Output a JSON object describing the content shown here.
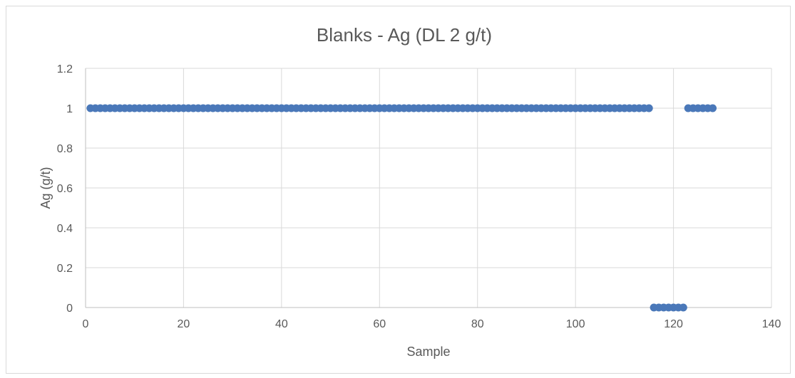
{
  "chart_data": {
    "type": "scatter",
    "title": "Blanks - Ag (DL 2 g/t)",
    "xlabel": "Sample",
    "ylabel": "Ag (g/t)",
    "xlim": [
      0,
      140
    ],
    "ylim": [
      0,
      1.2
    ],
    "xticks": [
      0,
      20,
      40,
      60,
      80,
      100,
      120,
      140
    ],
    "yticks": [
      0,
      0.2,
      0.4,
      0.6,
      0.8,
      1,
      1.2
    ],
    "xtick_labels": [
      "0",
      "20",
      "40",
      "60",
      "80",
      "100",
      "120",
      "140"
    ],
    "ytick_labels": [
      "0",
      "0.2",
      "0.4",
      "0.6",
      "0.8",
      "1",
      "1.2"
    ],
    "grid": true,
    "legend": false,
    "series": [
      {
        "color": "#4a78b9",
        "points": [
          [
            1,
            1
          ],
          [
            2,
            1
          ],
          [
            3,
            1
          ],
          [
            4,
            1
          ],
          [
            5,
            1
          ],
          [
            6,
            1
          ],
          [
            7,
            1
          ],
          [
            8,
            1
          ],
          [
            9,
            1
          ],
          [
            10,
            1
          ],
          [
            11,
            1
          ],
          [
            12,
            1
          ],
          [
            13,
            1
          ],
          [
            14,
            1
          ],
          [
            15,
            1
          ],
          [
            16,
            1
          ],
          [
            17,
            1
          ],
          [
            18,
            1
          ],
          [
            19,
            1
          ],
          [
            20,
            1
          ],
          [
            21,
            1
          ],
          [
            22,
            1
          ],
          [
            23,
            1
          ],
          [
            24,
            1
          ],
          [
            25,
            1
          ],
          [
            26,
            1
          ],
          [
            27,
            1
          ],
          [
            28,
            1
          ],
          [
            29,
            1
          ],
          [
            30,
            1
          ],
          [
            31,
            1
          ],
          [
            32,
            1
          ],
          [
            33,
            1
          ],
          [
            34,
            1
          ],
          [
            35,
            1
          ],
          [
            36,
            1
          ],
          [
            37,
            1
          ],
          [
            38,
            1
          ],
          [
            39,
            1
          ],
          [
            40,
            1
          ],
          [
            41,
            1
          ],
          [
            42,
            1
          ],
          [
            43,
            1
          ],
          [
            44,
            1
          ],
          [
            45,
            1
          ],
          [
            46,
            1
          ],
          [
            47,
            1
          ],
          [
            48,
            1
          ],
          [
            49,
            1
          ],
          [
            50,
            1
          ],
          [
            51,
            1
          ],
          [
            52,
            1
          ],
          [
            53,
            1
          ],
          [
            54,
            1
          ],
          [
            55,
            1
          ],
          [
            56,
            1
          ],
          [
            57,
            1
          ],
          [
            58,
            1
          ],
          [
            59,
            1
          ],
          [
            60,
            1
          ],
          [
            61,
            1
          ],
          [
            62,
            1
          ],
          [
            63,
            1
          ],
          [
            64,
            1
          ],
          [
            65,
            1
          ],
          [
            66,
            1
          ],
          [
            67,
            1
          ],
          [
            68,
            1
          ],
          [
            69,
            1
          ],
          [
            70,
            1
          ],
          [
            71,
            1
          ],
          [
            72,
            1
          ],
          [
            73,
            1
          ],
          [
            74,
            1
          ],
          [
            75,
            1
          ],
          [
            76,
            1
          ],
          [
            77,
            1
          ],
          [
            78,
            1
          ],
          [
            79,
            1
          ],
          [
            80,
            1
          ],
          [
            81,
            1
          ],
          [
            82,
            1
          ],
          [
            83,
            1
          ],
          [
            84,
            1
          ],
          [
            85,
            1
          ],
          [
            86,
            1
          ],
          [
            87,
            1
          ],
          [
            88,
            1
          ],
          [
            89,
            1
          ],
          [
            90,
            1
          ],
          [
            91,
            1
          ],
          [
            92,
            1
          ],
          [
            93,
            1
          ],
          [
            94,
            1
          ],
          [
            95,
            1
          ],
          [
            96,
            1
          ],
          [
            97,
            1
          ],
          [
            98,
            1
          ],
          [
            99,
            1
          ],
          [
            100,
            1
          ],
          [
            101,
            1
          ],
          [
            102,
            1
          ],
          [
            103,
            1
          ],
          [
            104,
            1
          ],
          [
            105,
            1
          ],
          [
            106,
            1
          ],
          [
            107,
            1
          ],
          [
            108,
            1
          ],
          [
            109,
            1
          ],
          [
            110,
            1
          ],
          [
            111,
            1
          ],
          [
            112,
            1
          ],
          [
            113,
            1
          ],
          [
            114,
            1
          ],
          [
            115,
            1
          ],
          [
            116,
            0
          ],
          [
            117,
            0
          ],
          [
            118,
            0
          ],
          [
            119,
            0
          ],
          [
            120,
            0
          ],
          [
            121,
            0
          ],
          [
            122,
            0
          ],
          [
            123,
            1
          ],
          [
            124,
            1
          ],
          [
            125,
            1
          ],
          [
            126,
            1
          ],
          [
            127,
            1
          ],
          [
            128,
            1
          ]
        ]
      }
    ]
  }
}
